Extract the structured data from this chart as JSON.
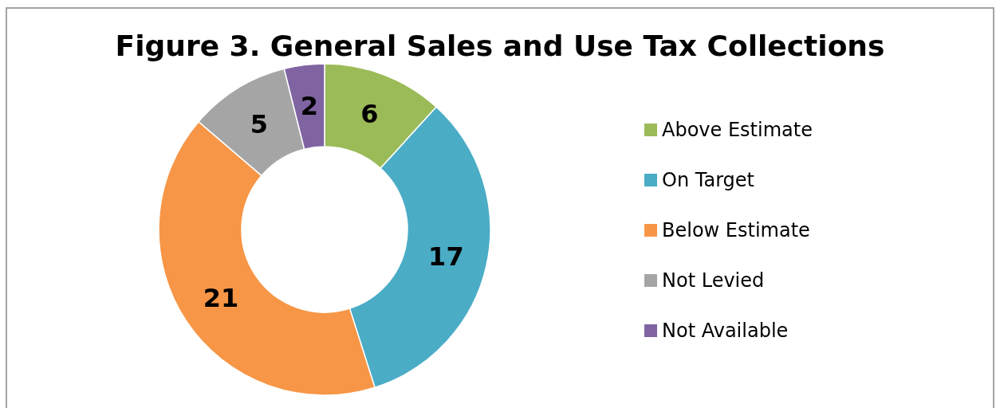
{
  "chart_data": {
    "type": "donut",
    "title": "Figure 3. General Sales and Use Tax Collections",
    "categories": [
      "Above Estimate",
      "On Target",
      "Below Estimate",
      "Not Levied",
      "Not Available"
    ],
    "values": [
      6,
      17,
      21,
      5,
      2
    ],
    "colors": [
      "#9bbb59",
      "#4bacc6",
      "#f79646",
      "#a5a5a5",
      "#8064a2"
    ],
    "data_labels": true,
    "legend": "right"
  }
}
